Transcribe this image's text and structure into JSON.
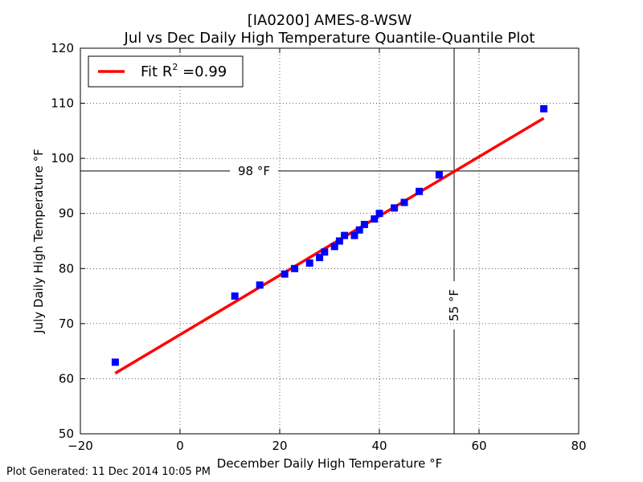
{
  "chart_data": {
    "type": "scatter",
    "title_line1": "[IA0200] AMES-8-WSW",
    "title_line2": "Jul vs Dec Daily High Temperature Quantile-Quantile Plot",
    "xlabel": "December Daily High Temperature °F",
    "ylabel": "July Daily High Temperature °F",
    "xlim": [
      -20,
      80
    ],
    "ylim": [
      50,
      120
    ],
    "xticks": [
      -20,
      0,
      20,
      40,
      60,
      80
    ],
    "xtick_labels": [
      "−20",
      "0",
      "20",
      "40",
      "60",
      "80"
    ],
    "yticks": [
      50,
      60,
      70,
      80,
      90,
      100,
      110,
      120
    ],
    "ytick_labels": [
      "50",
      "60",
      "70",
      "80",
      "90",
      "100",
      "110",
      "120"
    ],
    "grid": true,
    "points": [
      {
        "x": -13,
        "y": 63
      },
      {
        "x": 11,
        "y": 75
      },
      {
        "x": 16,
        "y": 77
      },
      {
        "x": 21,
        "y": 79
      },
      {
        "x": 23,
        "y": 80
      },
      {
        "x": 26,
        "y": 81
      },
      {
        "x": 28,
        "y": 82
      },
      {
        "x": 29,
        "y": 83
      },
      {
        "x": 31,
        "y": 84
      },
      {
        "x": 32,
        "y": 85
      },
      {
        "x": 33,
        "y": 86
      },
      {
        "x": 35,
        "y": 86
      },
      {
        "x": 36,
        "y": 87
      },
      {
        "x": 37,
        "y": 88
      },
      {
        "x": 39,
        "y": 89
      },
      {
        "x": 40,
        "y": 90
      },
      {
        "x": 43,
        "y": 91
      },
      {
        "x": 45,
        "y": 92
      },
      {
        "x": 48,
        "y": 94
      },
      {
        "x": 52,
        "y": 97
      },
      {
        "x": 73,
        "y": 109
      }
    ],
    "marker_color": "#0000ff",
    "fit_line": {
      "x": [
        -13,
        73
      ],
      "y": [
        61,
        107.3
      ],
      "color": "#ff0000"
    },
    "legend": {
      "label_prefix": "Fit R",
      "label_sup": "2",
      "label_suffix": " =0.99",
      "placement": "top-left"
    },
    "hline": {
      "y": 97.7,
      "label": "98 °F"
    },
    "vline": {
      "x": 55,
      "label": "55 °F"
    }
  },
  "footer": "Plot Generated: 11 Dec 2014 10:05 PM"
}
